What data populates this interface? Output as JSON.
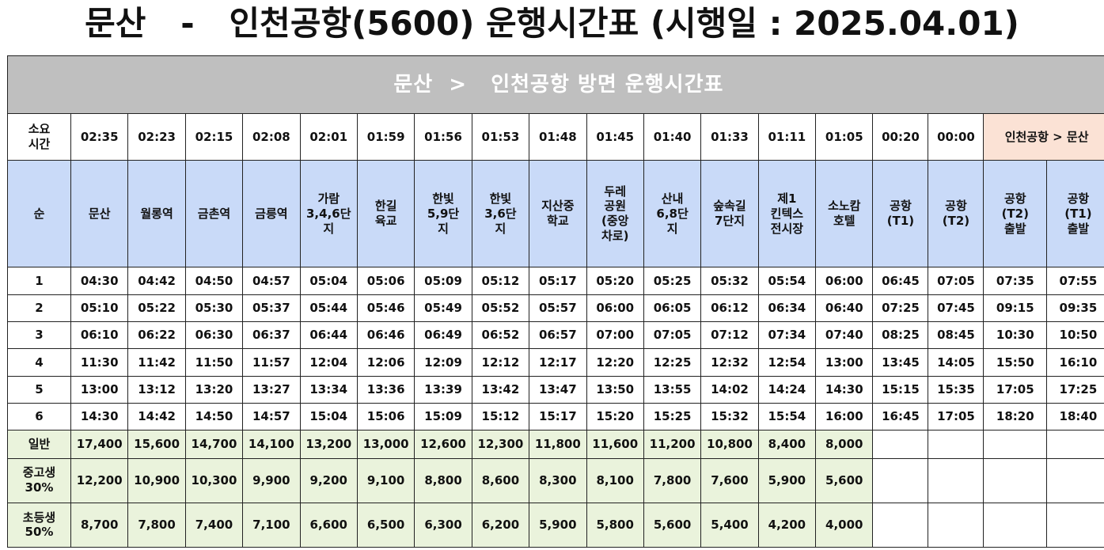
{
  "title": "문산   -   인천공항(5600) 운행시간표 (시행일 : 2025.04.01)",
  "banner": "문산  >   인천공항 방면 운행시간표",
  "duration_label": [
    "소요",
    "시간"
  ],
  "durations": [
    "02:35",
    "02:23",
    "02:15",
    "02:08",
    "02:01",
    "01:59",
    "01:56",
    "01:53",
    "01:48",
    "01:45",
    "01:40",
    "01:33",
    "01:11",
    "01:05",
    "00:20",
    "00:00"
  ],
  "reverse_label": "인천공항 > 문산",
  "order_label": "순",
  "stops": [
    [
      "문산"
    ],
    [
      "월롱역"
    ],
    [
      "금촌역"
    ],
    [
      "금릉역"
    ],
    [
      "가람",
      "3,4,6단",
      "지"
    ],
    [
      "한길",
      "육교"
    ],
    [
      "한빛",
      "5,9단",
      "지"
    ],
    [
      "한빛",
      "3,6단",
      "지"
    ],
    [
      "지산중",
      "학교"
    ],
    [
      "두레",
      "공원",
      "(중앙",
      "차로)"
    ],
    [
      "산내",
      "6,8단",
      "지"
    ],
    [
      "숲속길",
      "7단지"
    ],
    [
      "제1",
      "킨텍스",
      "전시장"
    ],
    [
      "소노캄",
      "호텔"
    ],
    [
      "공항",
      "(T1)"
    ],
    [
      "공항",
      "(T2)"
    ],
    [
      "공항",
      "(T2)",
      "출발"
    ],
    [
      "공항",
      "(T1)",
      "출발"
    ]
  ],
  "rows": [
    {
      "no": "1",
      "times": [
        "04:30",
        "04:42",
        "04:50",
        "04:57",
        "05:04",
        "05:06",
        "05:09",
        "05:12",
        "05:17",
        "05:20",
        "05:25",
        "05:32",
        "05:54",
        "06:00",
        "06:45",
        "07:05",
        "07:35",
        "07:55"
      ]
    },
    {
      "no": "2",
      "times": [
        "05:10",
        "05:22",
        "05:30",
        "05:37",
        "05:44",
        "05:46",
        "05:49",
        "05:52",
        "05:57",
        "06:00",
        "06:05",
        "06:12",
        "06:34",
        "06:40",
        "07:25",
        "07:45",
        "09:15",
        "09:35"
      ]
    },
    {
      "no": "3",
      "times": [
        "06:10",
        "06:22",
        "06:30",
        "06:37",
        "06:44",
        "06:46",
        "06:49",
        "06:52",
        "06:57",
        "07:00",
        "07:05",
        "07:12",
        "07:34",
        "07:40",
        "08:25",
        "08:45",
        "10:30",
        "10:50"
      ]
    },
    {
      "no": "4",
      "times": [
        "11:30",
        "11:42",
        "11:50",
        "11:57",
        "12:04",
        "12:06",
        "12:09",
        "12:12",
        "12:17",
        "12:20",
        "12:25",
        "12:32",
        "12:54",
        "13:00",
        "13:45",
        "14:05",
        "15:50",
        "16:10"
      ]
    },
    {
      "no": "5",
      "times": [
        "13:00",
        "13:12",
        "13:20",
        "13:27",
        "13:34",
        "13:36",
        "13:39",
        "13:42",
        "13:47",
        "13:50",
        "13:55",
        "14:02",
        "14:24",
        "14:30",
        "15:15",
        "15:35",
        "17:05",
        "17:25"
      ]
    },
    {
      "no": "6",
      "times": [
        "14:30",
        "14:42",
        "14:50",
        "14:57",
        "15:04",
        "15:06",
        "15:09",
        "15:12",
        "15:17",
        "15:20",
        "15:25",
        "15:32",
        "15:54",
        "16:00",
        "16:45",
        "17:05",
        "18:20",
        "18:40"
      ]
    }
  ],
  "fares": [
    {
      "label": [
        "일반"
      ],
      "values": [
        "17,400",
        "15,600",
        "14,700",
        "14,100",
        "13,200",
        "13,000",
        "12,600",
        "12,300",
        "11,800",
        "11,600",
        "11,200",
        "10,800",
        "8,400",
        "8,000"
      ]
    },
    {
      "label": [
        "중고생",
        "30%"
      ],
      "values": [
        "12,200",
        "10,900",
        "10,300",
        "9,900",
        "9,200",
        "9,100",
        "8,800",
        "8,600",
        "8,300",
        "8,100",
        "7,800",
        "7,600",
        "5,900",
        "5,600"
      ]
    },
    {
      "label": [
        "초등생",
        "50%"
      ],
      "values": [
        "8,700",
        "7,800",
        "7,400",
        "7,100",
        "6,600",
        "6,500",
        "6,300",
        "6,200",
        "5,900",
        "5,800",
        "5,600",
        "5,400",
        "4,200",
        "4,000"
      ]
    }
  ],
  "colors": {
    "banner": "#bfbfbf",
    "stop_header": "#c9daf8",
    "reverse_header": "#fbe2d5",
    "fare": "#eaf3dc"
  }
}
